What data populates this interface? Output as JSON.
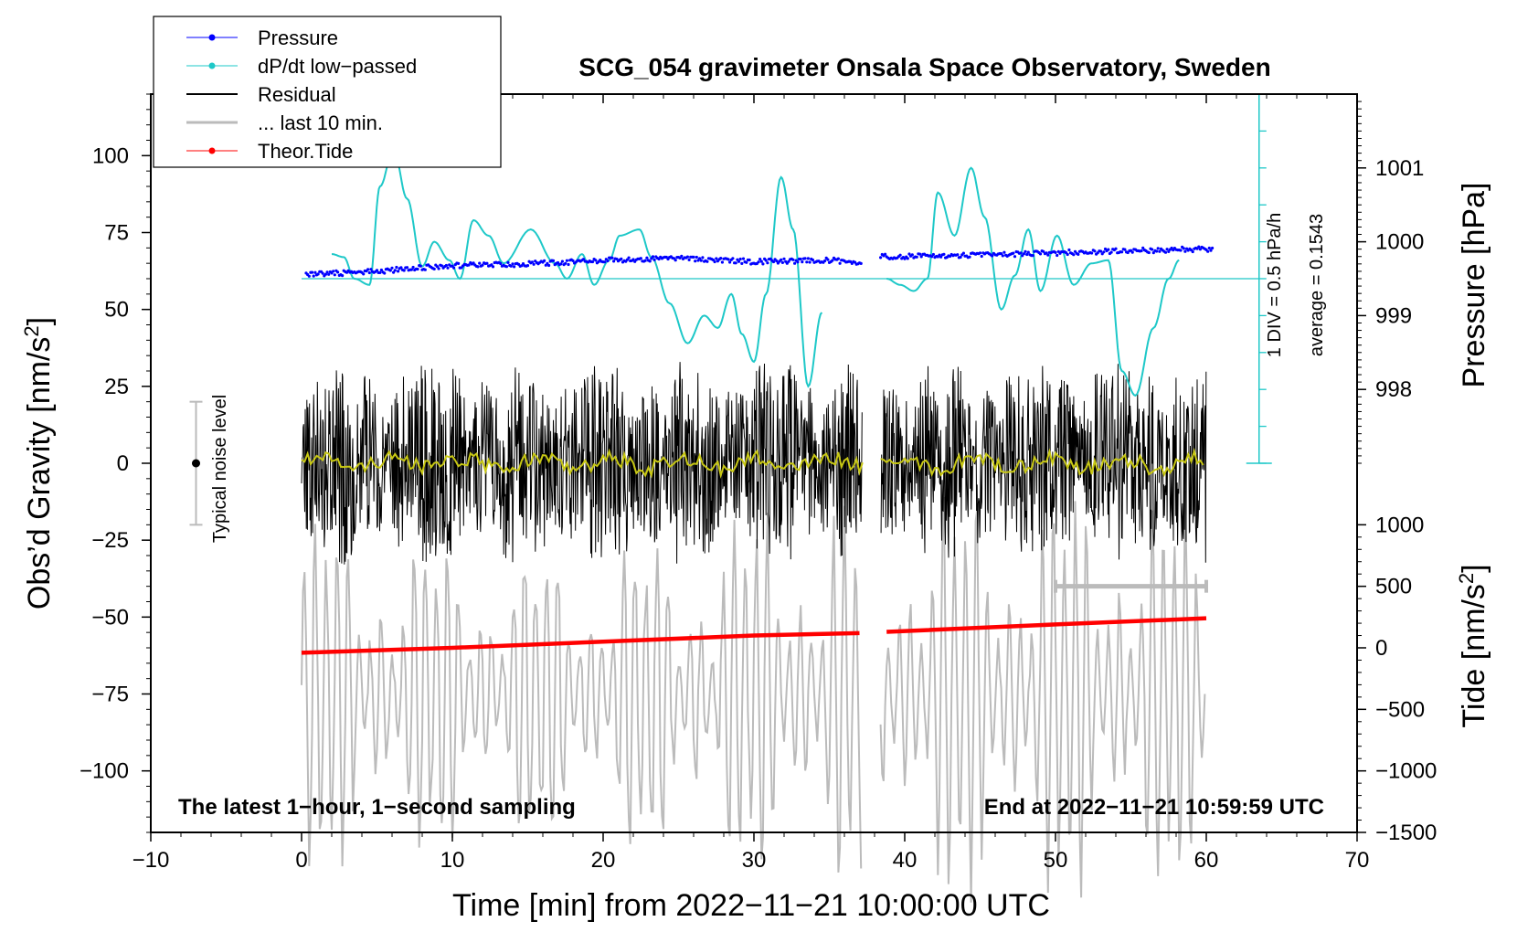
{
  "chart_data": {
    "type": "line",
    "title": "SCG_054 gravimeter Onsala Space Observatory, Sweden",
    "xlabel": "Time [min] from 2022−11−21 10:00:00 UTC",
    "ylabel_main": "Obs’d Gravity [nm/s",
    "ylabel_main_sup": "2",
    "ylabel_main_close": "]",
    "ylabel_pressure": "Pressure [hPa]",
    "ylabel_tide": "Tide [nm/s",
    "ylabel_tide_sup": "2",
    "ylabel_tide_close": "]",
    "xlim": [
      -10,
      70
    ],
    "ylim": [
      -120,
      120
    ],
    "x_ticks": [
      {
        "value": -10,
        "label": "−10"
      },
      {
        "value": 0,
        "label": "0"
      },
      {
        "value": 10,
        "label": "10"
      },
      {
        "value": 20,
        "label": "20"
      },
      {
        "value": 30,
        "label": "30"
      },
      {
        "value": 40,
        "label": "40"
      },
      {
        "value": 50,
        "label": "50"
      },
      {
        "value": 60,
        "label": "60"
      },
      {
        "value": 70,
        "label": "70"
      }
    ],
    "y_ticks": [
      {
        "value": 100,
        "label": "100"
      },
      {
        "value": 75,
        "label": "75"
      },
      {
        "value": 50,
        "label": "50"
      },
      {
        "value": 25,
        "label": "25"
      },
      {
        "value": 0,
        "label": "0"
      },
      {
        "value": -25,
        "label": "−25"
      },
      {
        "value": -50,
        "label": "−50"
      },
      {
        "value": -75,
        "label": "−75"
      },
      {
        "value": -100,
        "label": "−100"
      }
    ],
    "pressure_axis": {
      "range": [
        997.0,
        1002.0
      ],
      "anchor_value": 997.0,
      "anchor_gravity": 0,
      "gravity_per_hPa": 24,
      "ticks": [
        {
          "value": 1001,
          "label": "1001"
        },
        {
          "value": 1000,
          "label": "1000"
        },
        {
          "value": 999,
          "label": "999"
        },
        {
          "value": 998,
          "label": "998"
        }
      ]
    },
    "tide_axis": {
      "anchor_value": 0,
      "anchor_gravity": -60,
      "gravity_per_unit": 0.04,
      "ticks": [
        {
          "value": 1000,
          "label": "1000"
        },
        {
          "value": 500,
          "label": "500"
        },
        {
          "value": 0,
          "label": "0"
        },
        {
          "value": -500,
          "label": "−500"
        },
        {
          "value": -1000,
          "label": "−1000"
        },
        {
          "value": -1500,
          "label": "−1500"
        }
      ]
    },
    "gap": [
      37.2,
      38.4
    ],
    "series": [
      {
        "name": "Pressure",
        "color": "#0000ff",
        "axis": "pressure",
        "x": [
          0,
          5,
          10,
          15,
          20,
          25,
          30,
          35,
          37,
          38.6,
          45,
          50,
          55,
          60
        ],
        "y": [
          999.55,
          999.6,
          999.68,
          999.7,
          999.75,
          999.78,
          999.73,
          999.75,
          999.72,
          999.8,
          999.82,
          999.85,
          999.88,
          999.9
        ]
      },
      {
        "name": "dP/dt low−passed",
        "color": "#1ec8c8",
        "axis": "gravity",
        "baseline": 60,
        "x": [
          2,
          2.8,
          3.5,
          4.5,
          5.2,
          6.1,
          7,
          8,
          8.8,
          9.8,
          10.5,
          11.4,
          12.4,
          13.4,
          15.2,
          16.8,
          17.6,
          18.6,
          19.4,
          20.4,
          21.1,
          22.4,
          23.2,
          24.4,
          25.6,
          26.7,
          27.6,
          28.5,
          29.2,
          30,
          30.8,
          31.8,
          32.6,
          33.6,
          34.5
        ],
        "y": [
          68,
          67,
          60,
          58,
          90,
          102,
          86,
          64,
          72,
          66,
          60,
          79,
          74,
          65,
          76,
          65,
          60,
          68,
          58,
          66,
          74,
          76,
          67,
          52,
          39,
          48,
          44,
          55,
          42,
          33,
          55,
          93,
          76,
          25,
          49
        ],
        "x2": [
          38.8,
          39.7,
          40.6,
          41.5,
          42.2,
          43.3,
          44.4,
          45.3,
          46.4,
          47.3,
          48.2,
          49,
          50.1,
          51.2,
          52.4,
          53.5,
          54.4,
          55.3,
          56.5,
          57.5,
          58.2
        ],
        "y2": [
          60,
          58,
          56,
          60,
          88,
          74,
          96,
          80,
          50,
          61,
          76,
          56,
          74,
          58,
          65,
          66,
          30,
          22,
          44,
          60,
          66
        ]
      },
      {
        "name": "Residual",
        "color": "#000000",
        "axis": "gravity",
        "x": [
          0,
          60
        ],
        "y": [
          0,
          0
        ]
      },
      {
        "name": "... last 10 min.",
        "color": "#bbbbbb",
        "axis": "gravity",
        "x": [
          50,
          60
        ],
        "y": [
          -40,
          -40
        ]
      },
      {
        "name": "Theor.Tide",
        "color": "#ff0000",
        "axis": "tide",
        "x": [
          0,
          10,
          20,
          30,
          37,
          38.8,
          50,
          60
        ],
        "y": [
          -40,
          0,
          50,
          100,
          120,
          130,
          190,
          240
        ]
      }
    ],
    "noise_bar": {
      "x": -7,
      "center": 0,
      "half_range": 20,
      "label": "Typical noise level"
    },
    "pressure_scale_labels": [
      "1 DIV = 0.5 hPa/h",
      "average = 0.1543"
    ],
    "annotations": {
      "bottom_left": "The latest 1−hour, 1−second sampling",
      "bottom_right": "End at 2022−11−21 10:59:59 UTC"
    },
    "legend": {
      "position": "top-left",
      "entries": [
        {
          "label": "Pressure",
          "color": "#0000ff",
          "marker": true,
          "width": 1
        },
        {
          "label": "dP/dt low−passed",
          "color": "#1ec8c8",
          "marker": true,
          "width": 1
        },
        {
          "label": "Residual",
          "color": "#000000",
          "marker": false,
          "width": 2
        },
        {
          "label": "... last 10 min.",
          "color": "#bbbbbb",
          "marker": false,
          "width": 3
        },
        {
          "label": "Theor.Tide",
          "color": "#ff0000",
          "marker": true,
          "width": 1
        }
      ]
    }
  }
}
